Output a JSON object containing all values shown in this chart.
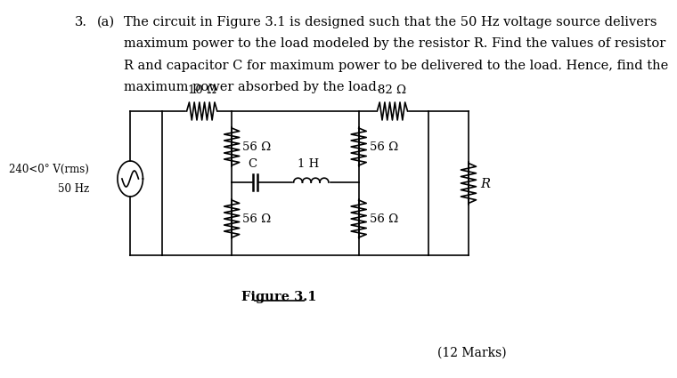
{
  "question_num": "3.",
  "part": "(a)",
  "text_lines": [
    "The circuit in Figure 3.1 is designed such that the 50 Hz voltage source delivers",
    "maximum power to the load modeled by the resistor R. Find the values of resistor",
    "R and capacitor C for maximum power to be delivered to the load. Hence, find the",
    "maximum power absorbed by the load."
  ],
  "figure_label": "Figure 3.1",
  "marks": "(12 Marks)",
  "resistors": {
    "R10": "10 Ω",
    "R82": "82 Ω",
    "R56_1": "56 Ω",
    "R56_2": "56 Ω",
    "R56_3": "56 Ω",
    "R56_4": "56 Ω",
    "RL": "R",
    "C": "C",
    "L": "1 H"
  },
  "bg_color": "#ffffff",
  "line_color": "#000000",
  "font_size_text": 10.5,
  "font_size_labels": 9.5
}
